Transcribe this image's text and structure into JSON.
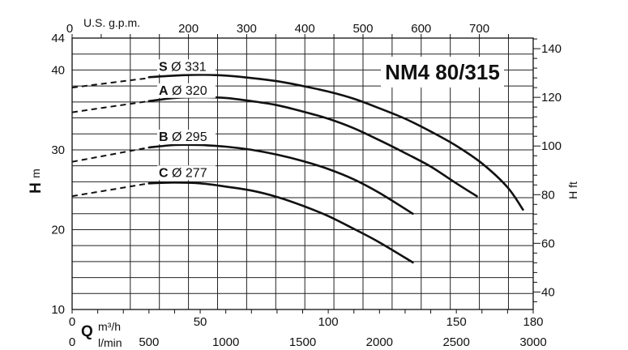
{
  "chart_data": {
    "type": "line",
    "title": "NM4 80/315",
    "y_axis_label": "H",
    "y_axis_unit": "m",
    "y_right_label": "H ft",
    "x_axis_label": "Q",
    "x_unit_m3h": "m³/h",
    "x_unit_lmin": "l/min",
    "x_unit_usgpm": "U.S. g.p.m.",
    "xlim_m3h": [
      0,
      180
    ],
    "ylim_m": [
      10,
      44
    ],
    "grid": true,
    "x_ticks_m3h": [
      {
        "value": 0,
        "label": "0"
      },
      {
        "value": 50,
        "label": "50"
      },
      {
        "value": 100,
        "label": "100"
      },
      {
        "value": 150,
        "label": "150"
      },
      {
        "value": 180,
        "label": "180"
      }
    ],
    "x_ticks_lmin": [
      {
        "value": 0,
        "label": "0"
      },
      {
        "value": 500,
        "label": "500"
      },
      {
        "value": 1000,
        "label": "1000"
      },
      {
        "value": 1500,
        "label": "1500"
      },
      {
        "value": 2000,
        "label": "2000"
      },
      {
        "value": 2500,
        "label": "2500"
      },
      {
        "value": 3000,
        "label": "3000"
      }
    ],
    "x_ticks_usgpm": [
      {
        "value": 0,
        "label": "0"
      },
      {
        "value": 200,
        "label": "200"
      },
      {
        "value": 300,
        "label": "300"
      },
      {
        "value": 400,
        "label": "400"
      },
      {
        "value": 500,
        "label": "500"
      },
      {
        "value": 600,
        "label": "600"
      },
      {
        "value": 700,
        "label": "700"
      }
    ],
    "y_ticks_m": [
      {
        "value": 10,
        "label": "10"
      },
      {
        "value": 20,
        "label": "20"
      },
      {
        "value": 30,
        "label": "30"
      },
      {
        "value": 40,
        "label": "40"
      },
      {
        "value": 44,
        "label": "44"
      }
    ],
    "y_ticks_ft": [
      {
        "value": 40,
        "label": "40"
      },
      {
        "value": 60,
        "label": "60"
      },
      {
        "value": 80,
        "label": "80"
      },
      {
        "value": 100,
        "label": "100"
      },
      {
        "value": 120,
        "label": "120"
      },
      {
        "value": 140,
        "label": "140"
      }
    ],
    "series": [
      {
        "letter": "S",
        "name": "Ø 331",
        "dashed": {
          "x": [
            0,
            30
          ],
          "y": [
            37.8,
            39.0
          ]
        },
        "values": {
          "x": [
            30,
            40,
            50,
            60,
            70,
            80,
            90,
            100,
            110,
            120,
            130,
            140,
            150,
            160,
            170,
            176
          ],
          "y": [
            39.1,
            39.3,
            39.4,
            39.3,
            39.0,
            38.6,
            38.0,
            37.3,
            36.4,
            35.2,
            33.9,
            32.3,
            30.5,
            28.3,
            25.3,
            22.5
          ]
        }
      },
      {
        "letter": "A",
        "name": "Ø 320",
        "dashed": {
          "x": [
            0,
            30
          ],
          "y": [
            34.7,
            36.1
          ]
        },
        "values": {
          "x": [
            30,
            40,
            50,
            60,
            70,
            80,
            90,
            100,
            110,
            120,
            130,
            140,
            150,
            158
          ],
          "y": [
            36.1,
            36.5,
            36.6,
            36.5,
            36.1,
            35.6,
            34.8,
            33.9,
            32.7,
            31.2,
            29.6,
            27.9,
            25.8,
            24.2
          ]
        }
      },
      {
        "letter": "B",
        "name": "Ø 295",
        "dashed": {
          "x": [
            0,
            30
          ],
          "y": [
            28.5,
            30.3
          ]
        },
        "values": {
          "x": [
            30,
            40,
            50,
            60,
            70,
            80,
            90,
            100,
            110,
            120,
            133
          ],
          "y": [
            30.3,
            30.6,
            30.6,
            30.4,
            30.0,
            29.4,
            28.6,
            27.6,
            26.3,
            24.6,
            22.0
          ]
        }
      },
      {
        "letter": "C",
        "name": "Ø 277",
        "dashed": {
          "x": [
            0,
            30
          ],
          "y": [
            24.2,
            25.8
          ]
        },
        "values": {
          "x": [
            30,
            40,
            50,
            60,
            70,
            80,
            90,
            100,
            110,
            120,
            133
          ],
          "y": [
            25.8,
            25.9,
            25.8,
            25.4,
            24.9,
            24.1,
            23.0,
            21.7,
            20.1,
            18.4,
            15.9
          ]
        }
      }
    ]
  }
}
